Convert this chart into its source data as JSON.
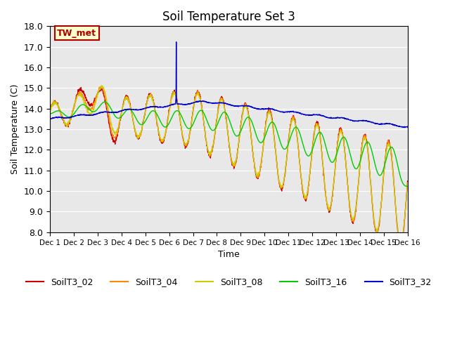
{
  "title": "Soil Temperature Set 3",
  "xlabel": "Time",
  "ylabel": "Soil Temperature (C)",
  "ylim": [
    8.0,
    18.0
  ],
  "yticks": [
    8.0,
    9.0,
    10.0,
    11.0,
    12.0,
    13.0,
    14.0,
    15.0,
    16.0,
    17.0,
    18.0
  ],
  "xtick_labels": [
    "Dec 1",
    "Dec 2",
    "Dec 3",
    "Dec 4",
    "Dec 5",
    "Dec 6",
    "Dec 7",
    "Dec 8",
    "Dec 9",
    "Dec 10",
    "Dec 11",
    "Dec 12",
    "Dec 13",
    "Dec 14",
    "Dec 15",
    "Dec 16"
  ],
  "n_days": 15,
  "pts_per_day": 96,
  "annotation_text": "TW_met",
  "annotation_bg": "#FFFFCC",
  "annotation_border": "#AA0000",
  "colors": {
    "SoilT3_02": "#CC0000",
    "SoilT3_04": "#FF8800",
    "SoilT3_08": "#CCCC00",
    "SoilT3_16": "#00CC00",
    "SoilT3_32": "#0000CC"
  },
  "bg_color": "#E8E8E8",
  "fig_bg": "#FFFFFF"
}
